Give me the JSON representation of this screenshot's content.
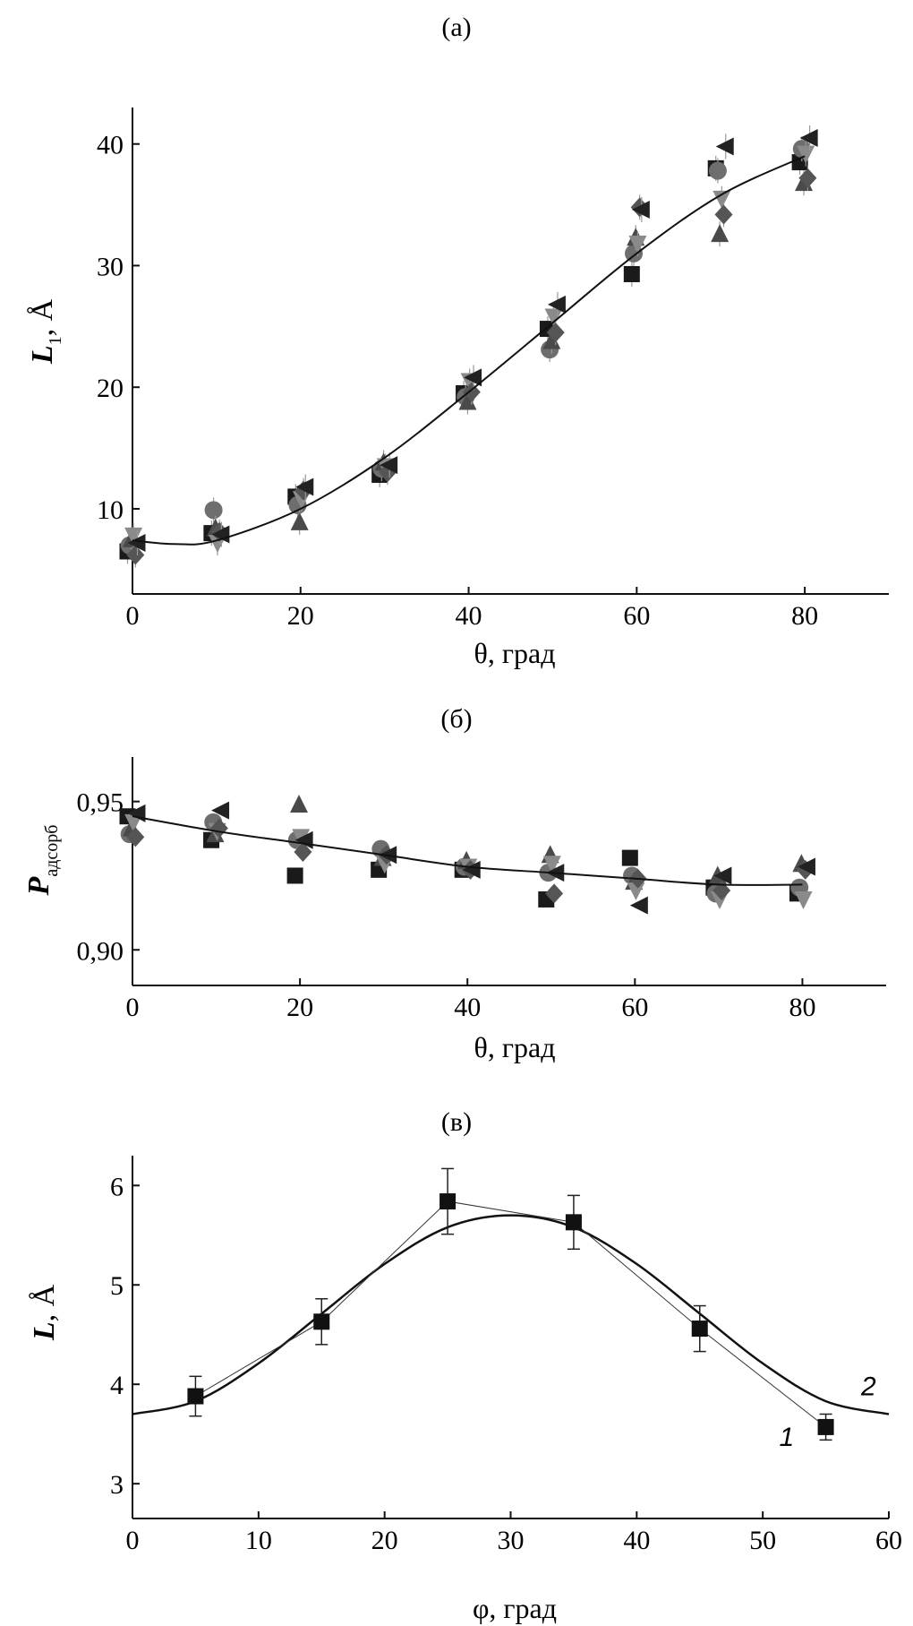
{
  "chart_data": [
    {
      "panel": "(а)",
      "type": "scatter",
      "xlabel": "θ, град",
      "ylabel_main": "L",
      "ylabel_sub": "1",
      "ylabel_unit": ", Å",
      "xlim": [
        0,
        90
      ],
      "ylim": [
        3,
        43
      ],
      "xticks": [
        0,
        20,
        40,
        60,
        80
      ],
      "yticks": [
        10,
        20,
        30,
        40
      ],
      "xtick_labels": [
        "0",
        "20",
        "40",
        "60",
        "80"
      ],
      "ytick_labels": [
        "10",
        "20",
        "30",
        "40"
      ],
      "series": [
        {
          "marker": "square",
          "color": "#1a1a1a",
          "x": [
            0,
            10,
            20,
            30,
            40,
            50,
            60,
            70,
            80
          ],
          "y": [
            6.5,
            8.0,
            11.0,
            12.8,
            19.5,
            24.8,
            29.3,
            38.0,
            38.5
          ]
        },
        {
          "marker": "circle",
          "color": "#6e6e6e",
          "x": [
            0,
            10,
            20,
            30,
            40,
            50,
            60,
            70,
            80
          ],
          "y": [
            7.0,
            9.9,
            10.3,
            13.3,
            19.2,
            23.1,
            31.0,
            37.8,
            39.6
          ]
        },
        {
          "marker": "triangle-up",
          "color": "#4a4a4a",
          "x": [
            0,
            10,
            20,
            30,
            40,
            50,
            60,
            70,
            80
          ],
          "y": [
            7.5,
            8.4,
            8.9,
            13.8,
            18.8,
            23.8,
            32.3,
            32.6,
            36.8
          ]
        },
        {
          "marker": "triangle-down",
          "color": "#8a8a8a",
          "x": [
            0,
            10,
            20,
            30,
            40,
            50,
            60,
            70,
            80
          ],
          "y": [
            7.8,
            7.2,
            10.8,
            13.5,
            20.5,
            25.8,
            31.8,
            35.5,
            39.2
          ]
        },
        {
          "marker": "diamond",
          "color": "#555555",
          "x": [
            0,
            10,
            20,
            30,
            40,
            50,
            60,
            70,
            80
          ],
          "y": [
            6.2,
            8.1,
            11.5,
            13.0,
            19.6,
            24.5,
            34.8,
            34.2,
            37.2
          ]
        },
        {
          "marker": "triangle-left",
          "color": "#222222",
          "x": [
            0,
            10,
            20,
            30,
            40,
            50,
            60,
            70,
            80
          ],
          "y": [
            7.2,
            7.9,
            11.8,
            13.6,
            20.8,
            26.8,
            34.6,
            39.8,
            40.5
          ]
        }
      ],
      "fit": {
        "x": [
          0,
          5,
          10,
          20,
          30,
          40,
          50,
          60,
          70,
          80
        ],
        "y": [
          7.4,
          7.1,
          7.4,
          10.0,
          14.2,
          19.6,
          25.3,
          31.0,
          35.8,
          39.0
        ]
      }
    },
    {
      "panel": "(б)",
      "type": "scatter",
      "xlabel": "θ, град",
      "ylabel_main": "P",
      "ylabel_sub": "адсорб",
      "xlim": [
        0,
        90
      ],
      "ylim": [
        0.888,
        0.965
      ],
      "xticks": [
        0,
        20,
        40,
        60,
        80
      ],
      "yticks": [
        0.9,
        0.95
      ],
      "xtick_labels": [
        "0",
        "20",
        "40",
        "60",
        "80"
      ],
      "ytick_labels": [
        "0,90",
        "0,95"
      ],
      "series": [
        {
          "marker": "square",
          "color": "#1a1a1a",
          "x": [
            0,
            10,
            20,
            30,
            40,
            50,
            60,
            70,
            80
          ],
          "y": [
            0.945,
            0.937,
            0.925,
            0.927,
            0.927,
            0.917,
            0.931,
            0.921,
            0.919
          ]
        },
        {
          "marker": "circle",
          "color": "#6e6e6e",
          "x": [
            0,
            10,
            20,
            30,
            40,
            50,
            60,
            70,
            80
          ],
          "y": [
            0.939,
            0.943,
            0.937,
            0.934,
            0.928,
            0.926,
            0.925,
            0.919,
            0.921
          ]
        },
        {
          "marker": "triangle-up",
          "color": "#4a4a4a",
          "x": [
            0,
            10,
            20,
            30,
            40,
            50,
            60,
            70,
            80
          ],
          "y": [
            0.941,
            0.939,
            0.949,
            0.931,
            0.93,
            0.932,
            0.923,
            0.925,
            0.929
          ]
        },
        {
          "marker": "triangle-down",
          "color": "#8a8a8a",
          "x": [
            0,
            10,
            20,
            30,
            40,
            50,
            60,
            70,
            80
          ],
          "y": [
            0.943,
            0.94,
            0.938,
            0.929,
            0.928,
            0.929,
            0.92,
            0.917,
            0.917
          ]
        },
        {
          "marker": "diamond",
          "color": "#555555",
          "x": [
            0,
            10,
            20,
            30,
            40,
            50,
            60,
            70,
            80
          ],
          "y": [
            0.938,
            0.941,
            0.933,
            0.932,
            0.927,
            0.919,
            0.924,
            0.92,
            0.927
          ]
        },
        {
          "marker": "triangle-left",
          "color": "#222222",
          "x": [
            0,
            10,
            20,
            30,
            40,
            50,
            60,
            70,
            80
          ],
          "y": [
            0.946,
            0.947,
            0.937,
            0.932,
            0.927,
            0.926,
            0.915,
            0.925,
            0.928
          ]
        }
      ],
      "fit": {
        "x": [
          0,
          10,
          20,
          30,
          40,
          50,
          60,
          70,
          80
        ],
        "y": [
          0.945,
          0.94,
          0.936,
          0.932,
          0.928,
          0.926,
          0.924,
          0.922,
          0.922
        ]
      }
    },
    {
      "panel": "(в)",
      "type": "line",
      "xlabel": "φ, град",
      "ylabel_main": "L",
      "ylabel_unit": ",  Å",
      "xlim": [
        0,
        60
      ],
      "ylim": [
        2.65,
        6.3
      ],
      "xticks": [
        0,
        10,
        20,
        30,
        40,
        50,
        60
      ],
      "yticks": [
        3,
        4,
        5,
        6
      ],
      "xtick_labels": [
        "0",
        "10",
        "20",
        "30",
        "40",
        "50",
        "60"
      ],
      "ytick_labels": [
        "3",
        "4",
        "5",
        "6"
      ],
      "series": [
        {
          "name": "1",
          "marker": "square",
          "color": "#111111",
          "x": [
            5,
            15,
            25,
            35,
            45,
            55
          ],
          "y": [
            3.88,
            4.63,
            5.84,
            5.63,
            4.56,
            3.57
          ],
          "err": [
            0.2,
            0.23,
            0.33,
            0.27,
            0.23,
            0.13
          ]
        },
        {
          "name": "2",
          "color": "#111111",
          "x": [
            0,
            5,
            10,
            15,
            20,
            25,
            30,
            35,
            40,
            45,
            50,
            55,
            60
          ],
          "y": [
            3.7,
            3.83,
            4.21,
            4.71,
            5.21,
            5.58,
            5.7,
            5.58,
            5.21,
            4.71,
            4.21,
            3.83,
            3.7
          ]
        }
      ]
    }
  ]
}
